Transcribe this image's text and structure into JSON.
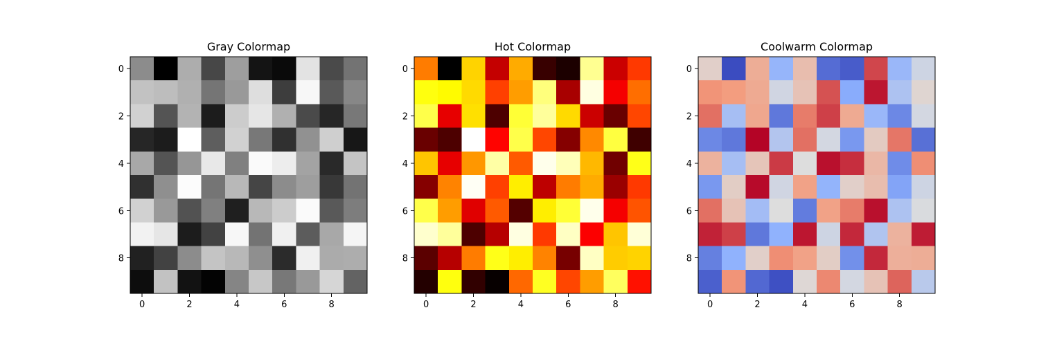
{
  "chart_data": [
    {
      "type": "heatmap",
      "title": "Gray Colormap",
      "colormap": "gray",
      "vmin": 0,
      "vmax": 1,
      "xticks": [
        0,
        2,
        4,
        6,
        8
      ],
      "yticks": [
        0,
        2,
        4,
        6,
        8
      ],
      "values": [
        [
          0.55,
          0.0,
          0.68,
          0.28,
          0.62,
          0.08,
          0.04,
          0.89,
          0.29,
          0.45
        ],
        [
          0.76,
          0.74,
          0.69,
          0.46,
          0.6,
          0.87,
          0.24,
          0.97,
          0.35,
          0.53
        ],
        [
          0.82,
          0.33,
          0.7,
          0.11,
          0.8,
          0.9,
          0.69,
          0.29,
          0.15,
          0.47
        ],
        [
          0.15,
          0.11,
          1.0,
          0.37,
          0.82,
          0.47,
          0.19,
          0.57,
          0.81,
          0.09
        ],
        [
          0.66,
          0.33,
          0.59,
          0.91,
          0.5,
          0.98,
          0.93,
          0.64,
          0.16,
          0.77
        ],
        [
          0.19,
          0.56,
          0.99,
          0.46,
          0.72,
          0.27,
          0.55,
          0.62,
          0.22,
          0.45
        ],
        [
          0.82,
          0.6,
          0.32,
          0.5,
          0.12,
          0.72,
          0.8,
          0.98,
          0.35,
          0.49
        ],
        [
          0.95,
          0.9,
          0.11,
          0.26,
          0.97,
          0.45,
          0.94,
          0.36,
          0.66,
          0.96
        ],
        [
          0.13,
          0.26,
          0.55,
          0.77,
          0.72,
          0.56,
          0.17,
          0.94,
          0.67,
          0.68
        ],
        [
          0.05,
          0.76,
          0.07,
          0.01,
          0.52,
          0.78,
          0.47,
          0.6,
          0.84,
          0.39
        ]
      ]
    },
    {
      "type": "heatmap",
      "title": "Hot Colormap",
      "colormap": "hot",
      "vmin": 0,
      "vmax": 1,
      "xticks": [
        0,
        2,
        4,
        6,
        8
      ],
      "yticks": [
        0,
        2,
        4,
        6,
        8
      ],
      "values": [
        [
          0.55,
          0.0,
          0.68,
          0.28,
          0.62,
          0.08,
          0.04,
          0.89,
          0.29,
          0.45
        ],
        [
          0.76,
          0.74,
          0.69,
          0.46,
          0.6,
          0.87,
          0.24,
          0.97,
          0.35,
          0.53
        ],
        [
          0.82,
          0.33,
          0.7,
          0.11,
          0.8,
          0.9,
          0.69,
          0.29,
          0.15,
          0.47
        ],
        [
          0.15,
          0.11,
          1.0,
          0.37,
          0.82,
          0.47,
          0.19,
          0.57,
          0.81,
          0.09
        ],
        [
          0.66,
          0.33,
          0.59,
          0.91,
          0.5,
          0.98,
          0.93,
          0.64,
          0.16,
          0.77
        ],
        [
          0.19,
          0.56,
          0.99,
          0.46,
          0.72,
          0.27,
          0.55,
          0.62,
          0.22,
          0.45
        ],
        [
          0.82,
          0.6,
          0.32,
          0.5,
          0.12,
          0.72,
          0.8,
          0.98,
          0.35,
          0.49
        ],
        [
          0.95,
          0.9,
          0.11,
          0.26,
          0.97,
          0.45,
          0.94,
          0.36,
          0.66,
          0.96
        ],
        [
          0.13,
          0.26,
          0.55,
          0.77,
          0.72,
          0.56,
          0.17,
          0.94,
          0.67,
          0.68
        ],
        [
          0.05,
          0.76,
          0.07,
          0.01,
          0.52,
          0.78,
          0.47,
          0.6,
          0.84,
          0.39
        ]
      ]
    },
    {
      "type": "heatmap",
      "title": "Coolwarm Colormap",
      "colormap": "coolwarm",
      "vmin": 0,
      "vmax": 1,
      "xticks": [
        0,
        2,
        4,
        6,
        8
      ],
      "yticks": [
        0,
        2,
        4,
        6,
        8
      ],
      "values": [
        [
          0.55,
          0.0,
          0.68,
          0.28,
          0.62,
          0.08,
          0.04,
          0.89,
          0.29,
          0.45
        ],
        [
          0.76,
          0.74,
          0.69,
          0.46,
          0.6,
          0.87,
          0.24,
          0.97,
          0.35,
          0.53
        ],
        [
          0.82,
          0.33,
          0.7,
          0.11,
          0.8,
          0.9,
          0.69,
          0.29,
          0.15,
          0.47
        ],
        [
          0.15,
          0.11,
          1.0,
          0.37,
          0.82,
          0.47,
          0.19,
          0.57,
          0.81,
          0.09
        ],
        [
          0.66,
          0.33,
          0.59,
          0.91,
          0.5,
          0.98,
          0.93,
          0.64,
          0.16,
          0.77
        ],
        [
          0.19,
          0.56,
          0.99,
          0.46,
          0.72,
          0.27,
          0.55,
          0.62,
          0.22,
          0.45
        ],
        [
          0.82,
          0.6,
          0.32,
          0.5,
          0.12,
          0.72,
          0.8,
          0.98,
          0.35,
          0.49
        ],
        [
          0.95,
          0.9,
          0.11,
          0.26,
          0.97,
          0.45,
          0.94,
          0.36,
          0.66,
          0.96
        ],
        [
          0.13,
          0.26,
          0.55,
          0.77,
          0.72,
          0.56,
          0.17,
          0.94,
          0.67,
          0.68
        ],
        [
          0.05,
          0.76,
          0.07,
          0.01,
          0.52,
          0.78,
          0.47,
          0.6,
          0.84,
          0.39
        ]
      ]
    }
  ]
}
